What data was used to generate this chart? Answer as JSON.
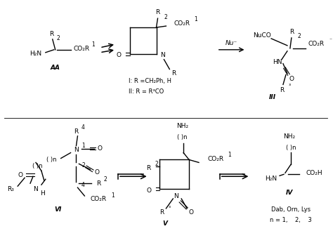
{
  "figsize": [
    4.74,
    3.29
  ],
  "dpi": 100,
  "bg": "#ffffff",
  "lw": 1.0,
  "fs_main": 7.5,
  "fs_small": 6.5,
  "fs_super": 5.5,
  "AA_label": "AA",
  "I_text": "I: R =CH₂Ph, H",
  "II_text": "II: R = R³CO",
  "III_label": "III",
  "V_label": "V",
  "VI_label": "VI",
  "IV_label": "IV",
  "dab_text": "Dab, Orn, Lys",
  "n_text": "n = 1,    2,    3",
  "nu_label": "Nu⁻"
}
